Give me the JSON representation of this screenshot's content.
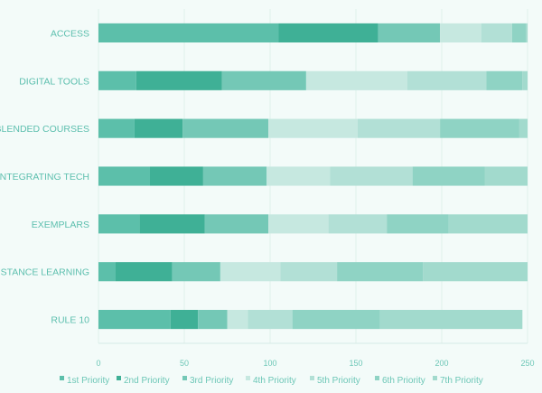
{
  "chart_data": {
    "type": "bar",
    "orientation": "horizontal",
    "stacked": true,
    "title": "",
    "xlabel": "",
    "ylabel": "",
    "xlim": [
      0,
      250
    ],
    "xticks": [
      "0",
      "50",
      "100",
      "150",
      "200",
      "250"
    ],
    "grid": true,
    "legend_position": "bottom",
    "categories": [
      "ACCESS",
      "DIGITAL TOOLS",
      "BLENDED COURSES",
      "INTEGRATING TECH",
      "EXEMPLARS",
      "DISTANCE LEARNING",
      "RULE 10"
    ],
    "series": [
      {
        "name": "1st Priority",
        "color": "#5cbfaa",
        "values": [
          105,
          22,
          21,
          30,
          24,
          10,
          42
        ]
      },
      {
        "name": "2nd Priority",
        "color": "#3fb096",
        "values": [
          58,
          50,
          28,
          31,
          38,
          33,
          16
        ]
      },
      {
        "name": "3rd Priority",
        "color": "#74c8b6",
        "values": [
          36,
          49,
          50,
          37,
          37,
          28,
          17
        ]
      },
      {
        "name": "4th Priority",
        "color": "#c6e8e0",
        "values": [
          24,
          59,
          52,
          37,
          35,
          35,
          12
        ]
      },
      {
        "name": "5th Priority",
        "color": "#b2e0d6",
        "values": [
          18,
          46,
          48,
          48,
          34,
          33,
          26
        ]
      },
      {
        "name": "6th Priority",
        "color": "#8fd3c4",
        "values": [
          8,
          21,
          46,
          42,
          36,
          50,
          51
        ]
      },
      {
        "name": "7th Priority",
        "color": "#a2dacd",
        "values": [
          2,
          3,
          5,
          31,
          46,
          61,
          83
        ]
      }
    ]
  }
}
